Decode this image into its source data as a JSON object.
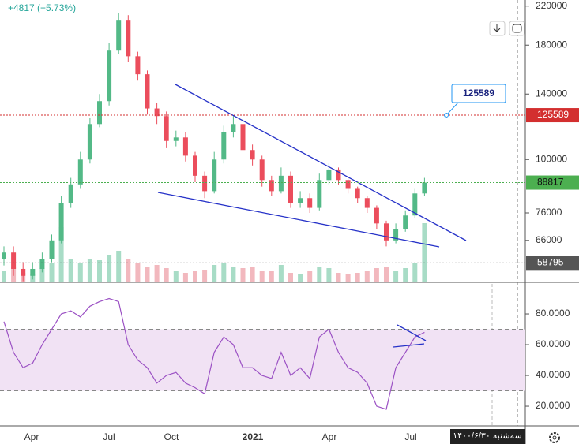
{
  "chart_data": [
    {
      "type": "candlestick",
      "header": "+4817 (+5.73%)",
      "log_scale": true,
      "up_color": "#53b987",
      "down_color": "#eb4d5c",
      "open": [
        60000,
        62000,
        57000,
        55000,
        57000,
        60000,
        66000,
        80000,
        88000,
        100000,
        120000,
        135000,
        175000,
        205000,
        170000,
        155000,
        130000,
        125000,
        110000,
        112000,
        102000,
        92000,
        85000,
        100000,
        115000,
        120000,
        105000,
        100000,
        90000,
        85000,
        92000,
        80000,
        82000,
        78000,
        90000,
        95000,
        90000,
        86000,
        82000,
        78000,
        72000,
        66000,
        70000,
        75000,
        84000
      ],
      "high": [
        64000,
        64000,
        59000,
        59000,
        62000,
        68000,
        83000,
        91000,
        104000,
        124000,
        140000,
        182000,
        212000,
        210000,
        174000,
        158000,
        134000,
        128000,
        116000,
        115000,
        104000,
        94000,
        104000,
        119000,
        125000,
        122000,
        108000,
        102000,
        92000,
        96000,
        94000,
        85000,
        84000,
        93000,
        98000,
        96000,
        91000,
        87000,
        83000,
        79000,
        73000,
        72000,
        77000,
        86000,
        91000
      ],
      "low": [
        58000,
        55000,
        53500,
        54000,
        56000,
        59000,
        65000,
        78000,
        86000,
        98000,
        118000,
        132000,
        172000,
        165000,
        150000,
        126000,
        120000,
        106000,
        107000,
        99000,
        89000,
        82000,
        84000,
        98000,
        112000,
        102000,
        97000,
        87000,
        83000,
        84000,
        78000,
        78000,
        76000,
        77000,
        88000,
        88000,
        84000,
        80000,
        76000,
        70000,
        64000,
        65000,
        69000,
        74000,
        83000
      ],
      "close": [
        62000,
        57000,
        55000,
        57000,
        60000,
        66000,
        80000,
        88000,
        100000,
        120000,
        135000,
        175000,
        205000,
        170000,
        155000,
        130000,
        125000,
        110000,
        112000,
        102000,
        92000,
        85000,
        100000,
        115000,
        120000,
        105000,
        100000,
        90000,
        85000,
        92000,
        80000,
        82000,
        78000,
        90000,
        95000,
        90000,
        86000,
        82000,
        78000,
        72000,
        66000,
        70000,
        75000,
        84000,
        88817
      ],
      "ylim": [
        53200,
        227000
      ],
      "yticks": [
        220000,
        180000,
        140000,
        100000,
        76000,
        66000
      ],
      "price_lines": [
        {
          "value": 125589,
          "color": "#d32f2f"
        },
        {
          "value": 88817,
          "color": "#4caf50"
        },
        {
          "value": 58795,
          "color": "#555555"
        }
      ],
      "callout": 125589,
      "x_labels": [
        "Apr",
        "Jul",
        "Oct",
        "2021",
        "Apr",
        "Jul"
      ],
      "date_label": "سه‌شنبه ۱۴۰۰/۶/۳۰"
    },
    {
      "type": "bar",
      "ylim": [
        0,
        100
      ],
      "up_color": "#a8dcc6",
      "down_color": "#f2b8be",
      "values": [
        15,
        20,
        12,
        10,
        18,
        25,
        70,
        30,
        25,
        30,
        28,
        35,
        40,
        30,
        25,
        20,
        22,
        18,
        15,
        12,
        14,
        16,
        22,
        25,
        20,
        18,
        20,
        15,
        14,
        22,
        12,
        10,
        14,
        20,
        18,
        12,
        10,
        12,
        14,
        18,
        20,
        15,
        18,
        25,
        75
      ]
    },
    {
      "type": "line",
      "color": "#9b51c4",
      "band": [
        30,
        70
      ],
      "band_color": "#f1e2f4",
      "values": [
        75,
        55,
        45,
        48,
        60,
        70,
        80,
        82,
        78,
        85,
        88,
        90,
        88,
        60,
        50,
        45,
        35,
        40,
        42,
        35,
        32,
        28,
        55,
        65,
        60,
        45,
        45,
        40,
        38,
        55,
        40,
        45,
        38,
        65,
        70,
        55,
        45,
        42,
        35,
        20,
        18,
        45,
        55,
        65,
        68
      ],
      "ylim": [
        7.2,
        99.5
      ],
      "yticks": [
        {
          "value": 80,
          "label": "80.0000"
        },
        {
          "value": 60,
          "label": "60.0000"
        },
        {
          "value": 40,
          "label": "40.0000"
        },
        {
          "value": 20,
          "label": "20.0000"
        }
      ]
    }
  ]
}
